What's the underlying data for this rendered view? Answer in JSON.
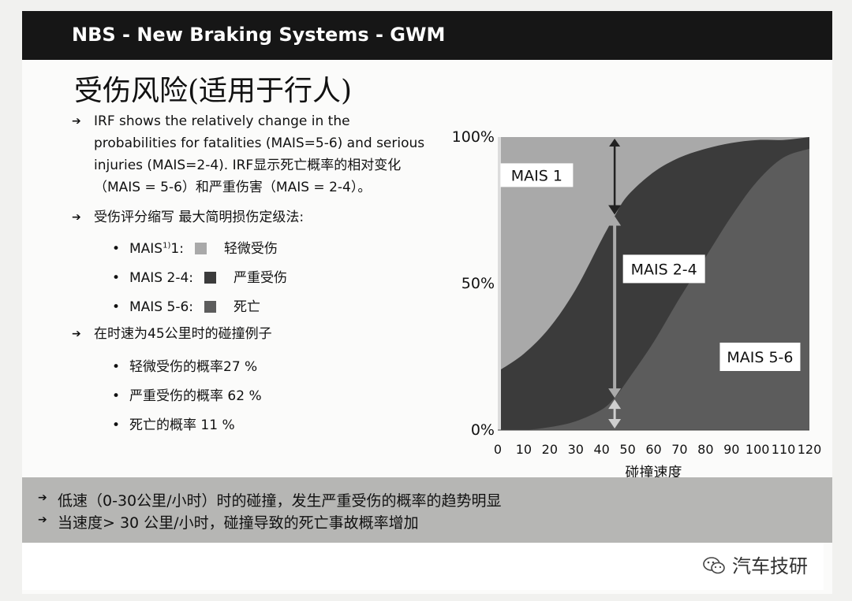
{
  "header": {
    "title": "NBS - New Braking Systems - GWM"
  },
  "page_title": "受伤风险(适用于行人)",
  "bullets": {
    "intro_lines": [
      "IRF shows the relatively change in the",
      "probabilities for fatalities (MAIS=5-6) and serious",
      "injuries (MAIS=2-4). IRF显示死亡概率的相对变化",
      "（MAIS = 5-6）和严重伤害（MAIS = 2-4）。"
    ],
    "scale_heading": "受伤评分缩写  最大简明损伤定级法:",
    "scale_items": [
      {
        "label": "MAIS",
        "sup": "1)",
        "label_rest": "1:",
        "desc": "轻微受伤",
        "color": "#a9a9a9"
      },
      {
        "label": "MAIS 2-4:",
        "sup": "",
        "label_rest": "",
        "desc": "严重受伤",
        "color": "#3b3b3b"
      },
      {
        "label": "MAIS 5-6:",
        "sup": "",
        "label_rest": "",
        "desc": "死亡",
        "color": "#5c5c5c"
      }
    ],
    "example_heading": "在时速为45公里时的碰撞例子",
    "example_items": [
      "轻微受伤的概率27 %",
      "严重受伤的概率 62 %",
      "死亡的概率 11 %"
    ]
  },
  "footer": {
    "lines": [
      "低速（0-30公里/小时）时的碰撞，发生严重受伤的概率的趋势明显",
      "当速度> 30 公里/小时，碰撞导致的死亡事故概率增加"
    ]
  },
  "watermark": "汽车技研",
  "chart_data": {
    "type": "area",
    "xlabel": "碰撞速度",
    "ylabel": "",
    "x_ticks": [
      0,
      10,
      20,
      30,
      40,
      50,
      60,
      70,
      80,
      90,
      100,
      110,
      120
    ],
    "y_ticks": [
      "0%",
      "50%",
      "100%"
    ],
    "xlim": [
      0,
      120
    ],
    "ylim": [
      0,
      100
    ],
    "grid": false,
    "series": [
      {
        "name": "MAIS 5-6",
        "color": "#5c5c5c",
        "x": [
          0,
          10,
          20,
          30,
          40,
          45,
          50,
          60,
          70,
          80,
          90,
          100,
          110,
          120
        ],
        "y": [
          0,
          0,
          1,
          3,
          7,
          11,
          17,
          30,
          45,
          59,
          73,
          85,
          93,
          96
        ]
      },
      {
        "name": "MAIS 2-4",
        "color": "#3b3b3b",
        "x": [
          0,
          10,
          20,
          30,
          40,
          45,
          50,
          60,
          70,
          80,
          90,
          100,
          110,
          120
        ],
        "y": [
          20,
          26,
          35,
          48,
          65,
          73,
          80,
          88,
          93,
          96,
          98,
          99,
          99,
          100
        ]
      },
      {
        "name": "MAIS 1",
        "color": "#a9a9a9",
        "x": [
          0,
          120
        ],
        "y": [
          100,
          100
        ]
      }
    ],
    "annotations": [
      {
        "text": "MAIS 1",
        "x": 15,
        "y": 87
      },
      {
        "text": "MAIS 2-4",
        "x": 64,
        "y": 55
      },
      {
        "text": "MAIS 5-6",
        "x": 101,
        "y": 25
      }
    ],
    "marker_x": 45
  }
}
